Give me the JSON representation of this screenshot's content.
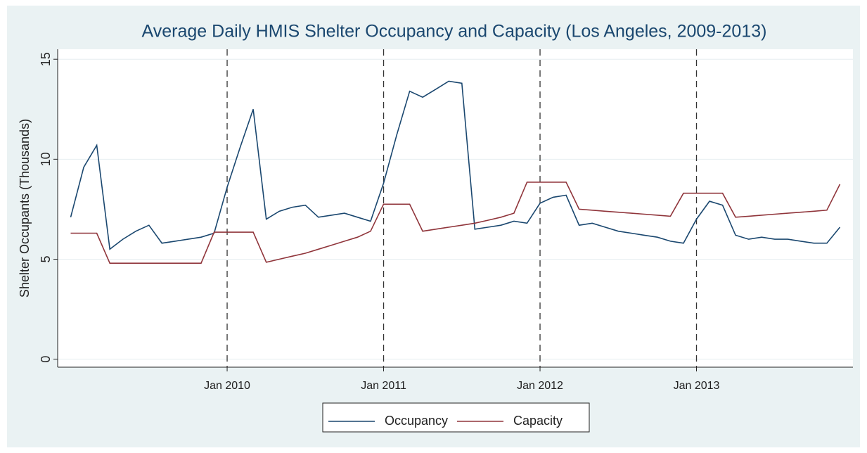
{
  "chart_data": {
    "type": "line",
    "title": "Average Daily HMIS Shelter Occupancy and Capacity (Los Angeles, 2009-2013)",
    "y_label": "Shelter Occupants (Thousands)",
    "x": [
      "2009-01",
      "2009-02",
      "2009-03",
      "2009-04",
      "2009-05",
      "2009-06",
      "2009-07",
      "2009-08",
      "2009-09",
      "2009-10",
      "2009-11",
      "2009-12",
      "2010-01",
      "2010-02",
      "2010-03",
      "2010-04",
      "2010-05",
      "2010-06",
      "2010-07",
      "2010-08",
      "2010-09",
      "2010-10",
      "2010-11",
      "2010-12",
      "2011-01",
      "2011-02",
      "2011-03",
      "2011-04",
      "2011-05",
      "2011-06",
      "2011-07",
      "2011-08",
      "2011-09",
      "2011-10",
      "2011-11",
      "2011-12",
      "2012-01",
      "2012-02",
      "2012-03",
      "2012-04",
      "2012-05",
      "2012-06",
      "2012-07",
      "2012-08",
      "2012-09",
      "2012-10",
      "2012-11",
      "2012-12",
      "2013-01",
      "2013-02",
      "2013-03",
      "2013-04",
      "2013-05",
      "2013-06",
      "2013-07",
      "2013-08",
      "2013-09",
      "2013-10",
      "2013-11",
      "2013-12"
    ],
    "series": [
      {
        "name": "Occupancy",
        "color": "#1a476f",
        "values": [
          7.1,
          9.6,
          10.7,
          5.5,
          6.0,
          6.4,
          6.7,
          5.8,
          5.9,
          6.0,
          6.1,
          6.3,
          8.6,
          10.6,
          12.5,
          7.0,
          7.4,
          7.6,
          7.7,
          7.1,
          7.2,
          7.3,
          7.1,
          6.9,
          8.8,
          11.2,
          13.4,
          13.1,
          13.5,
          13.9,
          13.8,
          6.5,
          6.6,
          6.7,
          6.9,
          6.8,
          7.8,
          8.1,
          8.2,
          6.7,
          6.8,
          6.6,
          6.4,
          6.3,
          6.2,
          6.1,
          5.9,
          5.8,
          7.0,
          7.9,
          7.7,
          6.2,
          6.0,
          6.1,
          6.0,
          6.0,
          5.9,
          5.8,
          5.8,
          6.6
        ]
      },
      {
        "name": "Capacity",
        "color": "#90353b",
        "values": [
          6.3,
          6.3,
          6.3,
          4.8,
          4.8,
          4.8,
          4.8,
          4.8,
          4.8,
          4.8,
          4.8,
          6.35,
          6.35,
          6.35,
          6.35,
          4.85,
          5.0,
          5.15,
          5.3,
          5.5,
          5.7,
          5.9,
          6.1,
          6.4,
          7.75,
          7.75,
          7.75,
          6.4,
          6.5,
          6.6,
          6.7,
          6.8,
          6.95,
          7.1,
          7.3,
          8.85,
          8.85,
          8.85,
          8.85,
          7.5,
          7.45,
          7.4,
          7.35,
          7.3,
          7.25,
          7.2,
          7.15,
          8.3,
          8.3,
          8.3,
          8.3,
          7.1,
          7.15,
          7.2,
          7.25,
          7.3,
          7.35,
          7.4,
          7.45,
          8.75
        ]
      }
    ],
    "xlim": [
      "2008-12",
      "2014-01"
    ],
    "xticks": [
      {
        "value": "2010-01",
        "label": "Jan 2010"
      },
      {
        "value": "2011-01",
        "label": "Jan 2011"
      },
      {
        "value": "2012-01",
        "label": "Jan 2012"
      },
      {
        "value": "2013-01",
        "label": "Jan 2013"
      }
    ],
    "ylim": [
      -0.4,
      15.5
    ],
    "yticks": [
      0,
      5,
      10,
      15
    ],
    "ygrid": true,
    "xgrid": true,
    "xgrid_style": "dashed",
    "legend": "bottom"
  }
}
